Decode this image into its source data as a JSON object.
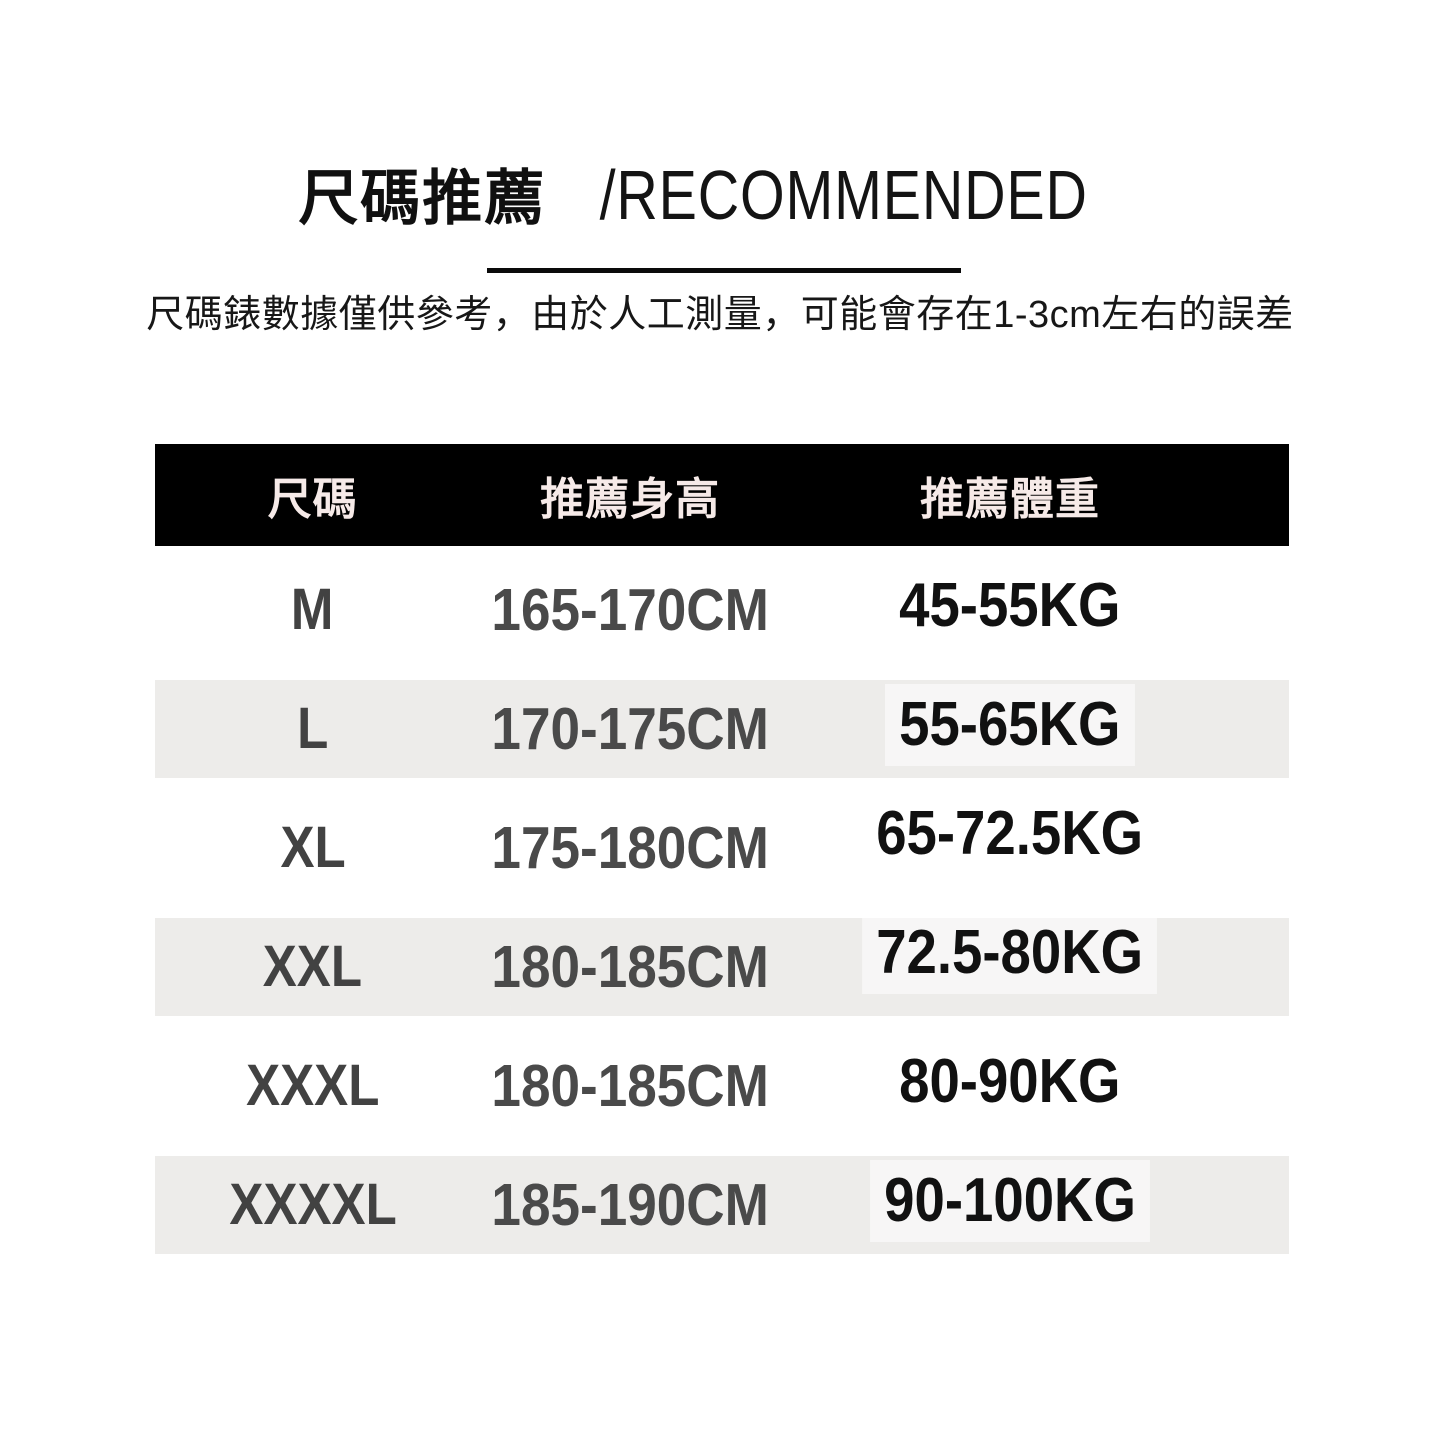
{
  "header": {
    "title_zh": "尺碼推薦",
    "title_en": "/RECOMMENDED",
    "subtitle": "尺碼錶數據僅供參考，由於人工測量，可能會存在1-3cm左右的誤差"
  },
  "chart_data": {
    "type": "table",
    "title": "尺碼推薦/RECOMMENDED",
    "columns": [
      "尺碼",
      "推薦身高",
      "推薦體重"
    ],
    "rows": [
      [
        "M",
        "165-170CM",
        "45-55KG"
      ],
      [
        "L",
        "170-175CM",
        "55-65KG"
      ],
      [
        "XL",
        "175-180CM",
        "65-72.5KG"
      ],
      [
        "XXL",
        "180-185CM",
        "72.5-80KG"
      ],
      [
        "XXXL",
        "180-185CM",
        "80-90KG"
      ],
      [
        "XXXXL",
        "185-190CM",
        "90-100KG"
      ]
    ],
    "layout": {
      "header_bg": "#000000",
      "header_text_color": "#F6EAE8",
      "zebra_row_bg": "#EDECEA",
      "row_text_color": "#4A4A4A",
      "weight_text_color": "#111111",
      "zebra_pattern": "even rows shaded",
      "grid": "off"
    }
  }
}
